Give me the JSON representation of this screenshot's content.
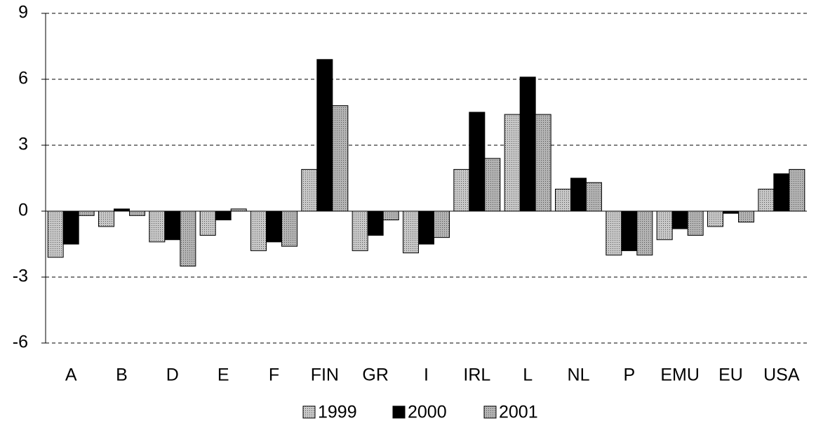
{
  "chart_data": {
    "type": "bar",
    "categories": [
      "A",
      "B",
      "D",
      "E",
      "F",
      "FIN",
      "GR",
      "I",
      "IRL",
      "L",
      "NL",
      "P",
      "EMU",
      "EU",
      "USA"
    ],
    "series": [
      {
        "name": "1999",
        "color": "#c8c8c8",
        "values": [
          -2.1,
          -0.7,
          -1.4,
          -1.1,
          -1.8,
          1.9,
          -1.8,
          -1.9,
          1.9,
          4.4,
          1.0,
          -2.0,
          -1.3,
          -0.7,
          1.0
        ]
      },
      {
        "name": "2000",
        "color": "#000000",
        "values": [
          -1.5,
          0.1,
          -1.3,
          -0.4,
          -1.4,
          6.9,
          -1.1,
          -1.5,
          4.5,
          6.1,
          1.5,
          -1.8,
          -0.8,
          -0.1,
          1.7
        ]
      },
      {
        "name": "2001",
        "color": "#b4b4b4",
        "values": [
          -0.2,
          -0.2,
          -2.5,
          0.1,
          -1.6,
          4.8,
          -0.4,
          -1.2,
          2.4,
          4.4,
          1.3,
          -2.0,
          -1.1,
          -0.5,
          1.9
        ]
      }
    ],
    "ylim": [
      -6,
      9
    ],
    "yticks": [
      -6,
      -3,
      0,
      3,
      6,
      9
    ],
    "grid": true,
    "legend": "bottom"
  }
}
